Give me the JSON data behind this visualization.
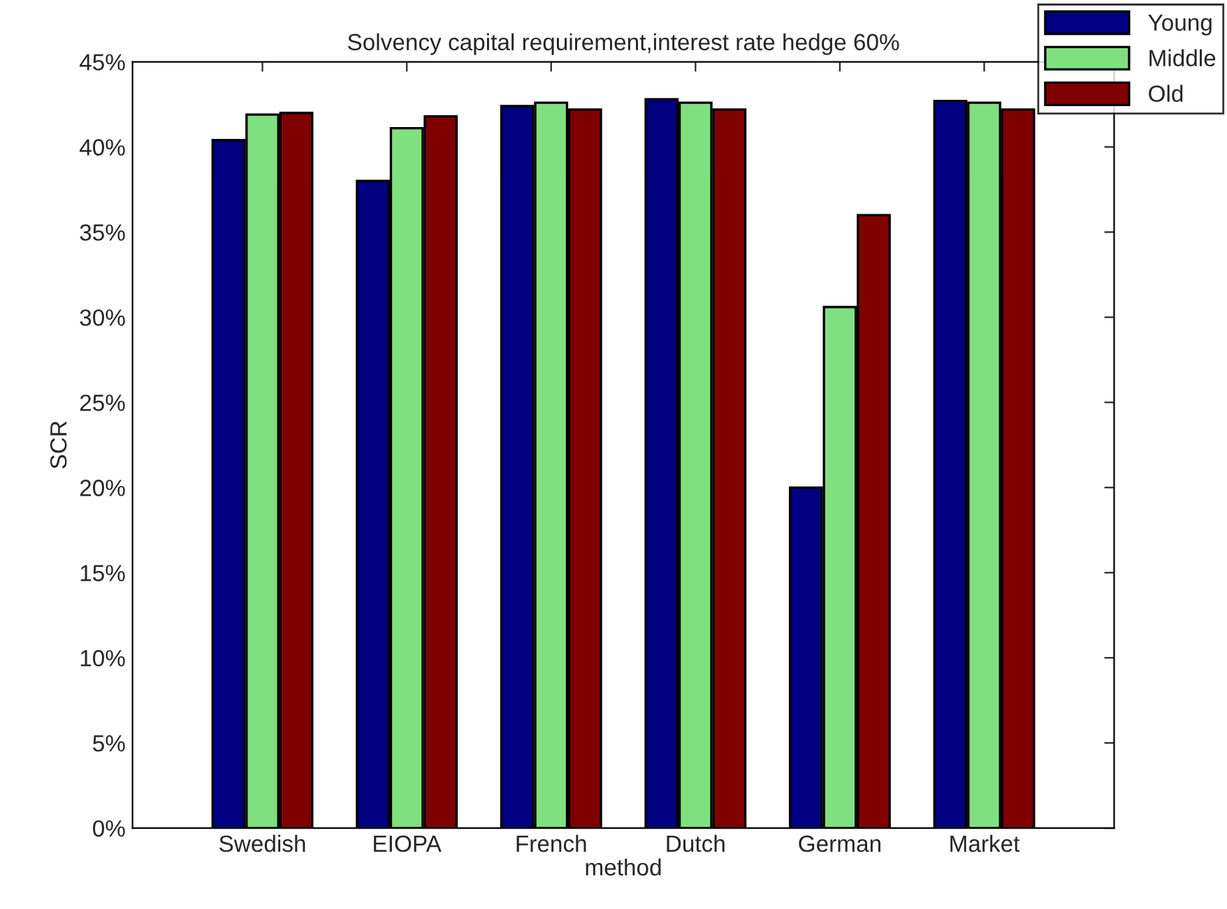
{
  "chart_data": {
    "type": "bar",
    "title": "Solvency capital requirement,interest rate hedge 60%",
    "xlabel": "method",
    "ylabel": "SCR",
    "categories": [
      "Swedish",
      "EIOPA",
      "French",
      "Dutch",
      "German",
      "Market"
    ],
    "series": [
      {
        "name": "Young",
        "color": "#000080",
        "values": [
          40.4,
          38.0,
          42.4,
          42.8,
          20.0,
          42.7
        ]
      },
      {
        "name": "Middle",
        "color": "#80e080",
        "values": [
          41.9,
          41.1,
          42.6,
          42.6,
          30.6,
          42.6
        ]
      },
      {
        "name": "Old",
        "color": "#800000",
        "values": [
          42.0,
          41.8,
          42.2,
          42.2,
          36.0,
          42.2
        ]
      }
    ],
    "ylim": [
      0,
      45
    ],
    "yticks": [
      {
        "value": 0,
        "label": "0%"
      },
      {
        "value": 5,
        "label": "5%"
      },
      {
        "value": 10,
        "label": "10%"
      },
      {
        "value": 15,
        "label": "15%"
      },
      {
        "value": 20,
        "label": "20%"
      },
      {
        "value": 25,
        "label": "25%"
      },
      {
        "value": 30,
        "label": "30%"
      },
      {
        "value": 35,
        "label": "35%"
      },
      {
        "value": 40,
        "label": "40%"
      },
      {
        "value": 45,
        "label": "45%"
      }
    ],
    "legend": "top right",
    "grid": false
  }
}
